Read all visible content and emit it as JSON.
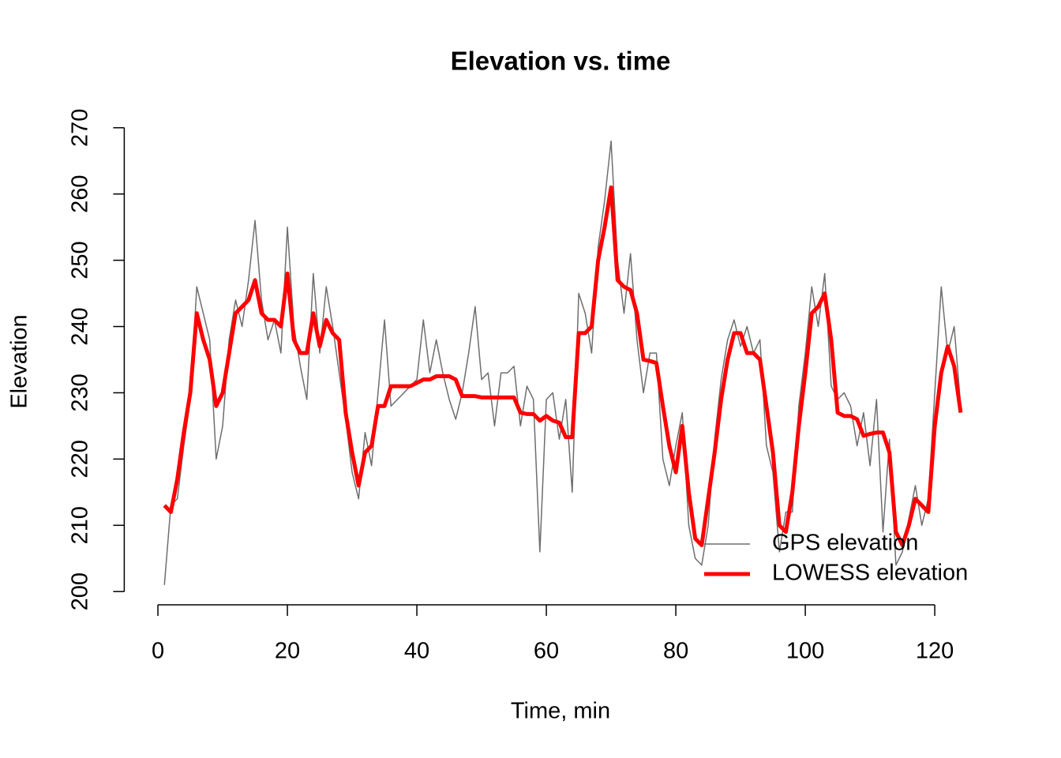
{
  "chart_data": {
    "type": "line",
    "title": "Elevation vs. time",
    "x_label": "Time, min",
    "y_label": "Elevation",
    "x": [
      1,
      2,
      3,
      4,
      5,
      6,
      7,
      8,
      9,
      10,
      11,
      12,
      13,
      14,
      15,
      16,
      17,
      18,
      19,
      20,
      21,
      22,
      23,
      24,
      25,
      26,
      27,
      28,
      29,
      30,
      31,
      32,
      33,
      34,
      35,
      36,
      37,
      38,
      39,
      40,
      41,
      42,
      43,
      44,
      45,
      46,
      47,
      48,
      49,
      50,
      51,
      52,
      53,
      54,
      55,
      56,
      57,
      58,
      59,
      60,
      61,
      62,
      63,
      64,
      65,
      66,
      67,
      68,
      69,
      70,
      71,
      72,
      73,
      74,
      75,
      76,
      77,
      78,
      79,
      80,
      81,
      82,
      83,
      84,
      85,
      86,
      87,
      88,
      89,
      90,
      91,
      92,
      93,
      94,
      95,
      96,
      97,
      98,
      99,
      100,
      101,
      102,
      103,
      104,
      105,
      106,
      107,
      108,
      109,
      110,
      111,
      112,
      113,
      114,
      115,
      116,
      117,
      118,
      119,
      120,
      121,
      122,
      123,
      124
    ],
    "series": [
      {
        "name": "GPS elevation",
        "color": "#6e6e6e",
        "width": 1.5,
        "values": [
          201,
          213,
          214,
          222,
          229,
          246,
          242,
          238,
          220,
          225,
          238,
          244,
          240,
          247,
          256,
          244,
          238,
          241,
          236,
          255,
          240,
          234,
          229,
          248,
          236,
          246,
          240,
          233,
          226,
          218,
          214,
          224,
          219,
          230,
          241,
          228,
          229,
          230,
          231,
          232,
          241,
          233,
          238,
          233,
          229,
          226,
          230,
          236,
          243,
          232,
          233,
          225,
          233,
          233,
          234,
          225,
          231,
          229,
          206,
          229,
          230,
          223,
          229,
          215,
          245,
          242,
          236,
          252,
          259,
          268,
          250,
          242,
          251,
          238,
          230,
          236,
          236,
          220,
          216,
          222,
          227,
          210,
          205,
          204,
          210,
          223,
          232,
          238,
          241,
          237,
          240,
          236,
          238,
          222,
          218,
          206,
          212,
          212,
          228,
          236,
          246,
          240,
          248,
          231,
          229,
          230,
          228,
          222,
          227,
          219,
          229,
          209,
          223,
          204,
          206,
          211,
          216,
          210,
          214,
          230,
          246,
          236,
          240,
          228
        ]
      },
      {
        "name": "LOWESS elevation",
        "color": "#ff0000",
        "width": 5,
        "values": [
          213,
          212,
          217,
          224,
          230,
          242,
          238,
          235,
          228,
          230,
          236,
          242,
          243,
          244,
          247,
          242,
          241,
          241,
          240,
          248,
          238,
          236,
          236,
          242,
          237,
          241,
          239,
          238,
          227,
          221,
          216,
          221,
          222,
          228,
          228,
          231,
          231,
          231,
          231,
          231.5,
          232,
          232,
          232.5,
          232.5,
          232.5,
          232,
          229.5,
          229.5,
          229.5,
          229.3,
          229.3,
          229.3,
          229.3,
          229.3,
          229.3,
          227,
          226.8,
          226.8,
          225.8,
          226.5,
          225.8,
          225.5,
          223.3,
          223.3,
          239,
          239,
          240,
          250,
          255,
          261,
          247,
          246,
          245.5,
          242,
          235,
          234.8,
          234.5,
          228,
          222,
          218,
          225,
          215,
          208,
          207,
          214,
          221,
          229,
          235,
          239,
          239,
          236,
          236,
          235,
          228,
          221,
          210,
          209,
          215,
          225,
          233,
          242,
          243,
          245,
          238,
          227,
          226.5,
          226.5,
          226,
          223.5,
          223.8,
          224,
          224,
          221,
          209,
          207,
          210,
          214,
          213,
          212,
          225,
          233,
          237,
          234,
          227
        ]
      }
    ],
    "xlim": [
      -5.2,
      129.5
    ],
    "ylim": [
      198,
      272
    ],
    "xticks": [
      0,
      20,
      40,
      60,
      80,
      100,
      120
    ],
    "yticks": [
      200,
      210,
      220,
      230,
      240,
      250,
      260,
      270
    ],
    "legend": "bottomright"
  }
}
